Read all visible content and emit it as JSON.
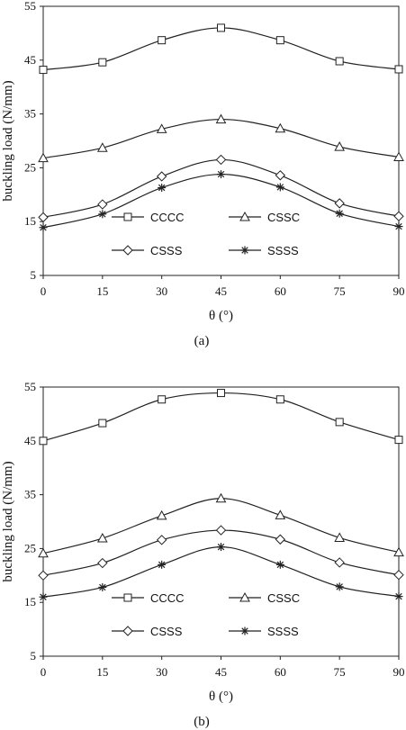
{
  "chart_data": [
    {
      "type": "line",
      "panel_label": "(a)",
      "xlabel": "θ (°)",
      "ylabel": "buckling load (N/mm)",
      "x": [
        0,
        15,
        30,
        45,
        60,
        75,
        90
      ],
      "xlim": [
        0,
        90
      ],
      "ylim": [
        5,
        55
      ],
      "x_ticks": [
        "0",
        "15",
        "30",
        "45",
        "60",
        "75",
        "90"
      ],
      "y_ticks": [
        "5",
        "15",
        "25",
        "35",
        "45",
        "55"
      ],
      "grid": false,
      "legend_position": "lower-center",
      "series": [
        {
          "name": "CCCC",
          "marker": "square",
          "values": [
            43.2,
            44.6,
            48.7,
            51.0,
            48.7,
            44.8,
            43.3
          ]
        },
        {
          "name": "CSSC",
          "marker": "triangle",
          "values": [
            26.8,
            28.7,
            32.2,
            34.0,
            32.3,
            28.9,
            27.0
          ]
        },
        {
          "name": "CSSS",
          "marker": "diamond",
          "values": [
            15.8,
            18.2,
            23.4,
            26.5,
            23.6,
            18.4,
            16.0
          ]
        },
        {
          "name": "SSSS",
          "marker": "star",
          "values": [
            13.9,
            16.4,
            21.3,
            23.8,
            21.4,
            16.5,
            14.1
          ]
        }
      ]
    },
    {
      "type": "line",
      "panel_label": "(b)",
      "xlabel": "θ (°)",
      "ylabel": "buckling load (N/mm)",
      "x": [
        0,
        15,
        30,
        45,
        60,
        75,
        90
      ],
      "xlim": [
        0,
        90
      ],
      "ylim": [
        5,
        55
      ],
      "x_ticks": [
        "0",
        "15",
        "30",
        "45",
        "60",
        "75",
        "90"
      ],
      "y_ticks": [
        "5",
        "15",
        "25",
        "35",
        "45",
        "55"
      ],
      "grid": false,
      "legend_position": "lower-center",
      "series": [
        {
          "name": "CCCC",
          "marker": "square",
          "values": [
            45.0,
            48.3,
            52.7,
            53.9,
            52.7,
            48.5,
            45.2
          ]
        },
        {
          "name": "CSSC",
          "marker": "triangle",
          "values": [
            24.1,
            26.9,
            31.1,
            34.3,
            31.2,
            27.0,
            24.3
          ]
        },
        {
          "name": "CSSS",
          "marker": "diamond",
          "values": [
            20.0,
            22.3,
            26.6,
            28.4,
            26.7,
            22.4,
            20.1
          ]
        },
        {
          "name": "SSSS",
          "marker": "star",
          "values": [
            16.0,
            17.8,
            22.0,
            25.3,
            22.0,
            17.9,
            16.1
          ]
        }
      ]
    }
  ]
}
